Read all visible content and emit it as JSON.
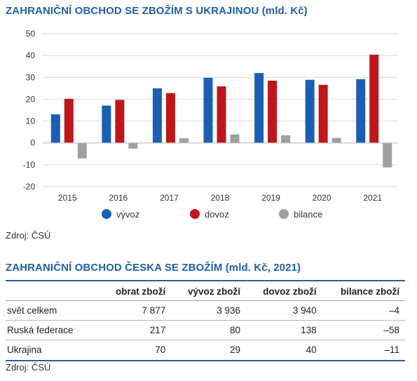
{
  "chart_title": "ZAHRANIČNÍ OBCHOD SE ZBOŽÍM S UKRAJINOU",
  "chart_unit": "(mld. Kč)",
  "source_1": "Zdroj: ČSÚ",
  "chart_data": {
    "type": "bar",
    "categories": [
      "2015",
      "2016",
      "2017",
      "2018",
      "2019",
      "2020",
      "2021"
    ],
    "ylim": [
      -20,
      50
    ],
    "yticks": [
      -20,
      -10,
      0,
      10,
      20,
      30,
      40,
      50
    ],
    "grid": true,
    "legend_position": "bottom",
    "series": [
      {
        "name": "vývoz",
        "color": "#1a5fb4",
        "values": [
          13.1,
          17.1,
          25.0,
          29.8,
          32.0,
          28.9,
          29.2
        ]
      },
      {
        "name": "dovoz",
        "color": "#c0161b",
        "values": [
          20.2,
          19.7,
          22.8,
          25.9,
          28.5,
          26.6,
          40.4
        ]
      },
      {
        "name": "bilance",
        "color": "#a0a0a0",
        "values": [
          -7.1,
          -2.6,
          2.2,
          3.9,
          3.5,
          2.3,
          -11.2
        ]
      }
    ]
  },
  "table_title": "ZAHRANIČNÍ OBCHOD ČESKA SE ZBOŽÍM",
  "table_unit": "(mld. Kč, 2021)",
  "table": {
    "headers": [
      "",
      "obrat zboží",
      "vývoz zboží",
      "dovoz zboží",
      "bilance zboží"
    ],
    "rows": [
      [
        "svět celkem",
        "7 877",
        "3 936",
        "3 940",
        "–4"
      ],
      [
        "Ruská federace",
        "217",
        "80",
        "138",
        "–58"
      ],
      [
        "Ukrajina",
        "70",
        "29",
        "40",
        "–11"
      ]
    ]
  },
  "source_2": "Zdroj: ČSÚ"
}
